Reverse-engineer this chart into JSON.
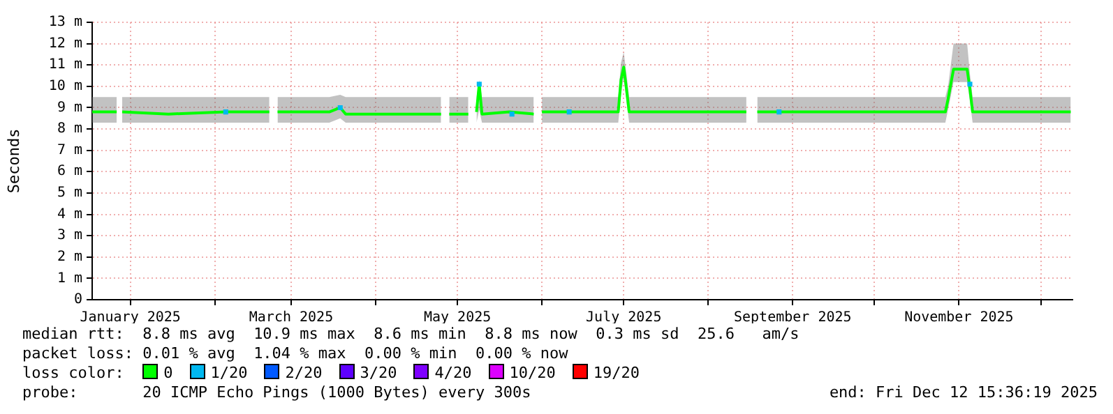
{
  "chart_data": {
    "type": "line",
    "ylabel": "Seconds",
    "legend_title": "loss color:",
    "legend": "bottom",
    "grid": true,
    "marker": "square",
    "xlim": [
      "2024-12-18",
      "2025-12-12T15:36"
    ],
    "xticks": [
      {
        "value": "2025-01-01",
        "label": "January 2025"
      },
      {
        "value": "2025-02-01",
        "label": null
      },
      {
        "value": "2025-03-01",
        "label": "March 2025"
      },
      {
        "value": "2025-04-01",
        "label": null
      },
      {
        "value": "2025-05-01",
        "label": "May 2025"
      },
      {
        "value": "2025-06-01",
        "label": null
      },
      {
        "value": "2025-07-01",
        "label": "July 2025"
      },
      {
        "value": "2025-08-01",
        "label": null
      },
      {
        "value": "2025-09-01",
        "label": "September 2025"
      },
      {
        "value": "2025-10-01",
        "label": null
      },
      {
        "value": "2025-11-01",
        "label": "November 2025"
      },
      {
        "value": "2025-12-01",
        "label": null
      }
    ],
    "ylim": [
      0,
      13
    ],
    "yticks": [
      0,
      {
        "value": 1,
        "label": "1 m"
      },
      {
        "value": 2,
        "label": "2 m"
      },
      {
        "value": 3,
        "label": "3 m"
      },
      {
        "value": 4,
        "label": "4 m"
      },
      {
        "value": 5,
        "label": "5 m"
      },
      {
        "value": 6,
        "label": "6 m"
      },
      {
        "value": 7,
        "label": "7 m"
      },
      {
        "value": 8,
        "label": "8 m"
      },
      {
        "value": 9,
        "label": "9 m"
      },
      {
        "value": 10,
        "label": "10 m"
      },
      {
        "value": 11,
        "label": "11 m"
      },
      {
        "value": 12,
        "label": "12 m"
      },
      {
        "value": 13,
        "label": "13 m"
      }
    ],
    "series": [
      {
        "name": "0",
        "color": "#00ff00",
        "marker": "none",
        "x": [
          "2024-12-18",
          "2024-12-27",
          "2024-12-28",
          "2024-12-29",
          "2025-01-15",
          "2025-02-05",
          "2025-02-21",
          "2025-02-22",
          "2025-02-24",
          "2025-03-15",
          "2025-03-19",
          "2025-03-21",
          "2025-04-10",
          "2025-04-25",
          "2025-04-26",
          "2025-04-28",
          "2025-05-05",
          "2025-05-06",
          "2025-05-08",
          "2025-05-09",
          "2025-05-10",
          "2025-05-20",
          "2025-05-29",
          "2025-05-30",
          "2025-06-01",
          "2025-06-15",
          "2025-06-29",
          "2025-06-30",
          "2025-07-01",
          "2025-07-02",
          "2025-07-03",
          "2025-07-20",
          "2025-08-15",
          "2025-08-17",
          "2025-08-19",
          "2025-09-15",
          "2025-10-10",
          "2025-10-27",
          "2025-10-28",
          "2025-10-30",
          "2025-11-04",
          "2025-11-05",
          "2025-11-06",
          "2025-11-25",
          "2025-12-12"
        ],
        "values": [
          8.8,
          8.8,
          null,
          8.8,
          8.7,
          8.8,
          8.8,
          null,
          8.8,
          8.8,
          9.0,
          8.7,
          8.7,
          8.7,
          null,
          8.7,
          8.7,
          null,
          8.8,
          10.1,
          8.7,
          8.8,
          8.7,
          null,
          8.8,
          8.8,
          8.8,
          10.3,
          10.9,
          9.9,
          8.8,
          8.8,
          8.8,
          null,
          8.8,
          8.8,
          8.8,
          8.8,
          9.4,
          10.8,
          10.8,
          9.9,
          8.8,
          8.8,
          8.8
        ],
        "lower": [
          8.3,
          8.3,
          null,
          8.3,
          8.3,
          8.3,
          8.3,
          null,
          8.3,
          8.3,
          8.5,
          8.3,
          8.3,
          8.3,
          null,
          8.3,
          8.3,
          null,
          8.3,
          8.9,
          8.3,
          8.3,
          8.3,
          null,
          8.3,
          8.3,
          8.3,
          9.6,
          10.4,
          9.3,
          8.3,
          8.3,
          8.3,
          null,
          8.3,
          8.3,
          8.3,
          8.3,
          8.9,
          10.2,
          10.2,
          9.3,
          8.3,
          8.3,
          8.3
        ],
        "upper": [
          9.5,
          9.5,
          null,
          9.5,
          9.5,
          9.5,
          9.5,
          null,
          9.5,
          9.5,
          9.6,
          9.5,
          9.5,
          9.5,
          null,
          9.5,
          9.5,
          null,
          9.5,
          10.3,
          9.5,
          9.5,
          9.5,
          null,
          9.5,
          9.5,
          9.5,
          11.1,
          11.6,
          10.6,
          9.5,
          9.5,
          9.5,
          null,
          9.5,
          9.5,
          9.5,
          9.5,
          10.0,
          12.0,
          12.0,
          10.6,
          9.5,
          9.5,
          9.5
        ]
      },
      {
        "name": "1/20",
        "color": "#00b8f0",
        "type": "scatter",
        "x": [
          "2025-02-05",
          "2025-03-19",
          "2025-05-09",
          "2025-05-21",
          "2025-06-11",
          "2025-08-27",
          "2025-11-05"
        ],
        "values": [
          8.8,
          9.0,
          10.1,
          8.7,
          8.8,
          8.8,
          10.1
        ]
      },
      {
        "name": "2/20",
        "color": "#0059ff",
        "type": "scatter"
      },
      {
        "name": "3/20",
        "color": "#5e00ff",
        "type": "scatter"
      },
      {
        "name": "4/20",
        "color": "#7e00ff",
        "type": "scatter"
      },
      {
        "name": "10/20",
        "color": "#dd00ff",
        "type": "scatter"
      },
      {
        "name": "19/20",
        "color": "#ff0000",
        "type": "scatter"
      }
    ],
    "annotations": [
      "median rtt:  8.8 ms avg  10.9 ms max  8.6 ms min  8.8 ms now  0.3 ms sd  25.6   am/s",
      "packet loss: 0.01 % avg  1.04 % max  0.00 % min  0.00 % now",
      "probe:       20 ICMP Echo Pings (1000 Bytes) every 300s",
      "end: Fri Dec 12 15:36:19 2025"
    ]
  }
}
